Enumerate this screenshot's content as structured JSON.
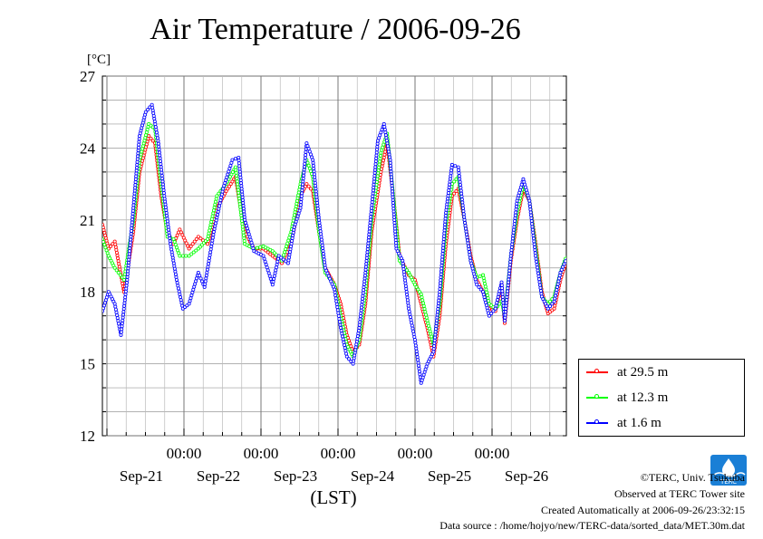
{
  "chart_data": {
    "type": "line",
    "title": "Air Temperature / 2006-09-26",
    "ylabel": "[°C]",
    "xlabel": "(LST)",
    "ylim": [
      12,
      27
    ],
    "yticks": [
      12,
      15,
      18,
      21,
      24,
      27
    ],
    "xlim_days": [
      0,
      6
    ],
    "time_labels": [
      "00:00",
      "00:00",
      "00:00",
      "00:00",
      "00:00"
    ],
    "date_labels": [
      "Sep-21",
      "Sep-22",
      "Sep-23",
      "Sep-24",
      "Sep-25",
      "Sep-26"
    ],
    "grid": true,
    "legend_position": "right",
    "series": [
      {
        "name": "at 29.5 m",
        "color": "#ff0000",
        "values": [
          [
            0,
            20.8
          ],
          [
            0.1,
            19.8
          ],
          [
            0.2,
            20.1
          ],
          [
            0.35,
            18.0
          ],
          [
            0.5,
            20.5
          ],
          [
            0.6,
            23.0
          ],
          [
            0.75,
            24.5
          ],
          [
            0.85,
            24.2
          ],
          [
            0.95,
            22.0
          ],
          [
            1.05,
            20.5
          ],
          [
            1.15,
            20.0
          ],
          [
            1.25,
            20.6
          ],
          [
            1.4,
            19.8
          ],
          [
            1.55,
            20.3
          ],
          [
            1.7,
            20.0
          ],
          [
            1.85,
            21.5
          ],
          [
            2.0,
            22.2
          ],
          [
            2.15,
            22.8
          ],
          [
            2.3,
            20.5
          ],
          [
            2.45,
            19.8
          ],
          [
            2.6,
            19.8
          ],
          [
            2.75,
            19.5
          ],
          [
            2.9,
            19.2
          ],
          [
            3.05,
            20.0
          ],
          [
            3.2,
            22.0
          ],
          [
            3.3,
            22.5
          ],
          [
            3.4,
            22.2
          ],
          [
            3.5,
            20.5
          ],
          [
            3.6,
            19.0
          ],
          [
            3.75,
            18.3
          ],
          [
            3.85,
            17.5
          ],
          [
            3.95,
            16.2
          ],
          [
            4.05,
            15.5
          ],
          [
            4.15,
            15.8
          ],
          [
            4.25,
            17.5
          ],
          [
            4.35,
            20.5
          ],
          [
            4.5,
            23.0
          ],
          [
            4.6,
            24.2
          ],
          [
            4.7,
            22.0
          ],
          [
            4.8,
            19.5
          ],
          [
            4.95,
            18.7
          ],
          [
            5.05,
            18.5
          ],
          [
            5.15,
            17.5
          ],
          [
            5.25,
            16.5
          ],
          [
            5.35,
            15.3
          ],
          [
            5.45,
            17.0
          ],
          [
            5.55,
            20.0
          ],
          [
            5.65,
            22.0
          ],
          [
            5.75,
            22.3
          ],
          [
            5.85,
            21.0
          ],
          [
            5.95,
            19.5
          ],
          [
            6.05,
            18.5
          ],
          [
            6.15,
            18.0
          ],
          [
            6.25,
            17.3
          ],
          [
            6.35,
            17.2
          ],
          [
            6.45,
            18.3
          ],
          [
            6.5,
            16.7
          ],
          [
            6.6,
            19.3
          ],
          [
            6.7,
            21.0
          ],
          [
            6.8,
            22.3
          ],
          [
            6.9,
            21.8
          ],
          [
            7.0,
            20.0
          ],
          [
            7.1,
            18.0
          ],
          [
            7.2,
            17.1
          ],
          [
            7.3,
            17.3
          ],
          [
            7.4,
            18.5
          ],
          [
            7.5,
            19.3
          ]
        ]
      },
      {
        "name": "at 12.3 m",
        "color": "#00ff00",
        "values": [
          [
            0,
            20.2
          ],
          [
            0.1,
            19.5
          ],
          [
            0.2,
            19.0
          ],
          [
            0.35,
            18.5
          ],
          [
            0.5,
            21.0
          ],
          [
            0.6,
            23.5
          ],
          [
            0.75,
            25.0
          ],
          [
            0.85,
            24.8
          ],
          [
            0.95,
            22.5
          ],
          [
            1.05,
            20.3
          ],
          [
            1.15,
            20.2
          ],
          [
            1.25,
            19.5
          ],
          [
            1.4,
            19.5
          ],
          [
            1.55,
            19.8
          ],
          [
            1.7,
            20.2
          ],
          [
            1.85,
            22.0
          ],
          [
            2.0,
            22.5
          ],
          [
            2.15,
            23.2
          ],
          [
            2.3,
            20.0
          ],
          [
            2.45,
            19.8
          ],
          [
            2.6,
            19.9
          ],
          [
            2.75,
            19.7
          ],
          [
            2.9,
            19.3
          ],
          [
            3.05,
            20.5
          ],
          [
            3.2,
            22.5
          ],
          [
            3.3,
            23.5
          ],
          [
            3.4,
            22.8
          ],
          [
            3.5,
            20.5
          ],
          [
            3.6,
            18.8
          ],
          [
            3.75,
            18.3
          ],
          [
            3.85,
            17.0
          ],
          [
            3.95,
            15.8
          ],
          [
            4.05,
            15.3
          ],
          [
            4.15,
            16.0
          ],
          [
            4.25,
            18.0
          ],
          [
            4.35,
            21.0
          ],
          [
            4.5,
            23.8
          ],
          [
            4.6,
            24.6
          ],
          [
            4.7,
            22.0
          ],
          [
            4.8,
            19.3
          ],
          [
            4.95,
            18.8
          ],
          [
            5.05,
            18.3
          ],
          [
            5.15,
            17.9
          ],
          [
            5.25,
            16.8
          ],
          [
            5.35,
            15.8
          ],
          [
            5.45,
            17.5
          ],
          [
            5.55,
            20.8
          ],
          [
            5.65,
            22.5
          ],
          [
            5.75,
            22.8
          ],
          [
            5.85,
            21.0
          ],
          [
            5.95,
            19.3
          ],
          [
            6.05,
            18.6
          ],
          [
            6.15,
            18.7
          ],
          [
            6.25,
            17.5
          ],
          [
            6.35,
            17.3
          ],
          [
            6.45,
            17.6
          ],
          [
            6.5,
            17.0
          ],
          [
            6.6,
            19.5
          ],
          [
            6.7,
            21.3
          ],
          [
            6.8,
            22.5
          ],
          [
            6.9,
            21.8
          ],
          [
            7.0,
            19.8
          ],
          [
            7.1,
            17.8
          ],
          [
            7.2,
            17.5
          ],
          [
            7.3,
            17.8
          ],
          [
            7.4,
            18.8
          ],
          [
            7.5,
            19.5
          ]
        ]
      },
      {
        "name": "at 1.6 m",
        "color": "#0000ff",
        "values": [
          [
            0,
            17.2
          ],
          [
            0.1,
            18.0
          ],
          [
            0.2,
            17.5
          ],
          [
            0.3,
            16.2
          ],
          [
            0.4,
            18.5
          ],
          [
            0.5,
            21.5
          ],
          [
            0.6,
            24.5
          ],
          [
            0.7,
            25.5
          ],
          [
            0.8,
            25.8
          ],
          [
            0.9,
            24.3
          ],
          [
            1.0,
            22.0
          ],
          [
            1.1,
            20.0
          ],
          [
            1.2,
            18.5
          ],
          [
            1.3,
            17.3
          ],
          [
            1.4,
            17.5
          ],
          [
            1.55,
            18.8
          ],
          [
            1.65,
            18.2
          ],
          [
            1.8,
            20.5
          ],
          [
            1.95,
            22.3
          ],
          [
            2.1,
            23.5
          ],
          [
            2.2,
            23.6
          ],
          [
            2.3,
            21.0
          ],
          [
            2.45,
            19.7
          ],
          [
            2.6,
            19.5
          ],
          [
            2.75,
            18.3
          ],
          [
            2.85,
            19.5
          ],
          [
            3.0,
            19.2
          ],
          [
            3.1,
            20.7
          ],
          [
            3.2,
            21.5
          ],
          [
            3.3,
            24.2
          ],
          [
            3.4,
            23.5
          ],
          [
            3.5,
            21.0
          ],
          [
            3.6,
            19.0
          ],
          [
            3.75,
            18.1
          ],
          [
            3.85,
            16.5
          ],
          [
            3.95,
            15.3
          ],
          [
            4.05,
            15.0
          ],
          [
            4.15,
            16.5
          ],
          [
            4.25,
            18.8
          ],
          [
            4.35,
            21.5
          ],
          [
            4.45,
            24.3
          ],
          [
            4.55,
            25.0
          ],
          [
            4.65,
            23.5
          ],
          [
            4.75,
            19.8
          ],
          [
            4.85,
            19.3
          ],
          [
            4.95,
            17.3
          ],
          [
            5.05,
            16.0
          ],
          [
            5.15,
            14.2
          ],
          [
            5.25,
            15.0
          ],
          [
            5.35,
            15.5
          ],
          [
            5.45,
            18.0
          ],
          [
            5.55,
            21.3
          ],
          [
            5.65,
            23.3
          ],
          [
            5.75,
            23.2
          ],
          [
            5.85,
            21.0
          ],
          [
            5.95,
            19.3
          ],
          [
            6.05,
            18.3
          ],
          [
            6.15,
            18.0
          ],
          [
            6.25,
            17.0
          ],
          [
            6.35,
            17.3
          ],
          [
            6.45,
            18.4
          ],
          [
            6.5,
            16.8
          ],
          [
            6.6,
            19.5
          ],
          [
            6.7,
            21.8
          ],
          [
            6.8,
            22.7
          ],
          [
            6.9,
            21.8
          ],
          [
            7.0,
            19.5
          ],
          [
            7.1,
            17.8
          ],
          [
            7.2,
            17.3
          ],
          [
            7.3,
            17.6
          ],
          [
            7.4,
            18.8
          ],
          [
            7.5,
            19.4
          ]
        ]
      }
    ]
  },
  "credits": {
    "copyright": "©TERC, Univ. Tsukuba",
    "site": "Observed at TERC Tower site",
    "created": "Created Automatically at 2006-09-26/23:32:15",
    "source": "Data source : /home/hojyo/new/TERC-data/sorted_data/MET.30m.dat"
  },
  "logo_text": "TERC"
}
